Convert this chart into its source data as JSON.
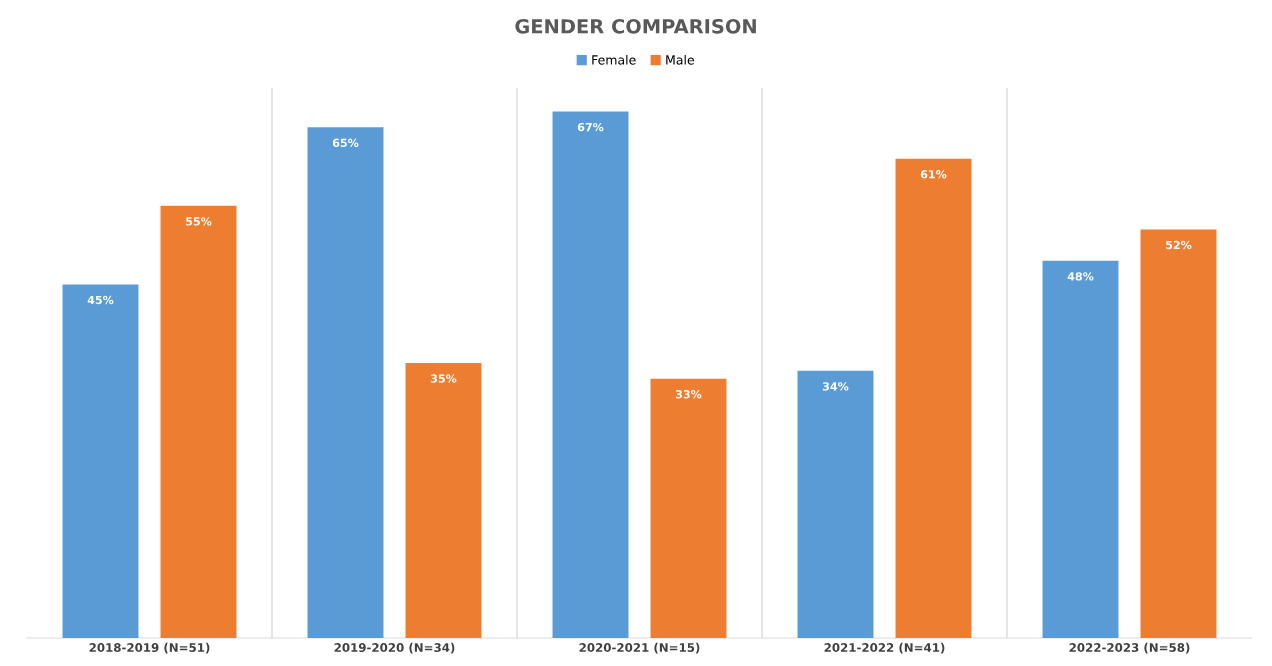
{
  "chart_data": {
    "type": "bar",
    "title": "GENDER COMPARISON",
    "categories": [
      "2018-2019 (N=51)",
      "2019-2020 (N=34)",
      "2020-2021 (N=15)",
      "2021-2022 (N=41)",
      "2022-2023 (N=58)"
    ],
    "series": [
      {
        "name": "Female",
        "color": "#5b9bd5",
        "values": [
          45,
          65,
          67,
          34,
          48
        ],
        "value_labels": [
          "45%",
          "65%",
          "67%",
          "34%",
          "48%"
        ]
      },
      {
        "name": "Male",
        "color": "#ed7d31",
        "values": [
          55,
          35,
          33,
          61,
          52
        ],
        "value_labels": [
          "55%",
          "35%",
          "33%",
          "61%",
          "52%"
        ]
      }
    ],
    "ylim": [
      0,
      70
    ],
    "tick_labels": "x",
    "grid": "x",
    "legend": "top"
  }
}
